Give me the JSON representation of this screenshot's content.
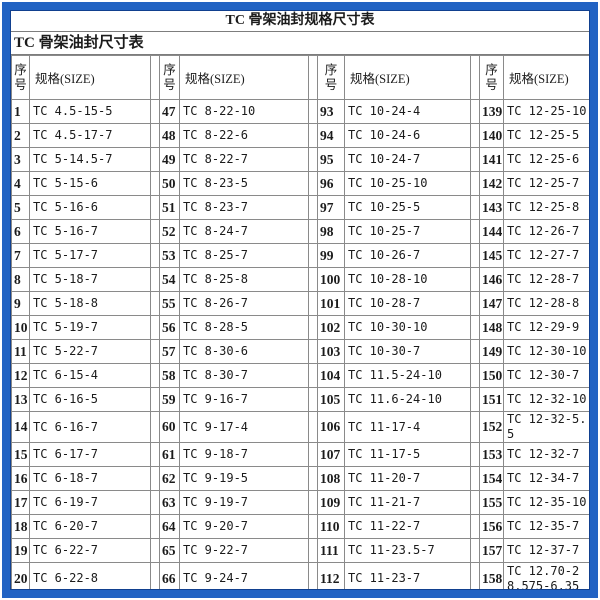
{
  "title": "TC 骨架油封规格尺寸表",
  "subtitle": "TC 骨架油封尺寸表",
  "table": {
    "index_header": "序号",
    "size_header": "规格(SIZE)",
    "groups": [
      {
        "rows": [
          {
            "no": "1",
            "size": "TC 4.5-15-5"
          },
          {
            "no": "2",
            "size": "TC 4.5-17-7"
          },
          {
            "no": "3",
            "size": "TC 5-14.5-7"
          },
          {
            "no": "4",
            "size": "TC 5-15-6"
          },
          {
            "no": "5",
            "size": "TC 5-16-6"
          },
          {
            "no": "6",
            "size": "TC 5-16-7"
          },
          {
            "no": "7",
            "size": "TC 5-17-7"
          },
          {
            "no": "8",
            "size": "TC 5-18-7"
          },
          {
            "no": "9",
            "size": "TC 5-18-8"
          },
          {
            "no": "10",
            "size": "TC 5-19-7"
          },
          {
            "no": "11",
            "size": "TC 5-22-7"
          },
          {
            "no": "12",
            "size": "TC 6-15-4"
          },
          {
            "no": "13",
            "size": "TC 6-16-5"
          },
          {
            "no": "14",
            "size": "TC 6-16-7"
          },
          {
            "no": "15",
            "size": "TC 6-17-7"
          },
          {
            "no": "16",
            "size": "TC 6-18-7"
          },
          {
            "no": "17",
            "size": "TC 6-19-7"
          },
          {
            "no": "18",
            "size": "TC 6-20-7"
          },
          {
            "no": "19",
            "size": "TC 6-22-7"
          },
          {
            "no": "20",
            "size": "TC 6-22-8"
          }
        ]
      },
      {
        "rows": [
          {
            "no": "47",
            "size": "TC 8-22-10"
          },
          {
            "no": "48",
            "size": "TC 8-22-6"
          },
          {
            "no": "49",
            "size": "TC 8-22-7"
          },
          {
            "no": "50",
            "size": "TC 8-23-5"
          },
          {
            "no": "51",
            "size": "TC 8-23-7"
          },
          {
            "no": "52",
            "size": "TC 8-24-7"
          },
          {
            "no": "53",
            "size": "TC 8-25-7"
          },
          {
            "no": "54",
            "size": "TC 8-25-8"
          },
          {
            "no": "55",
            "size": "TC 8-26-7"
          },
          {
            "no": "56",
            "size": "TC 8-28-5"
          },
          {
            "no": "57",
            "size": "TC 8-30-6"
          },
          {
            "no": "58",
            "size": "TC 8-30-7"
          },
          {
            "no": "59",
            "size": "TC 9-16-7"
          },
          {
            "no": "60",
            "size": "TC 9-17-4"
          },
          {
            "no": "61",
            "size": "TC 9-18-7"
          },
          {
            "no": "62",
            "size": "TC 9-19-5"
          },
          {
            "no": "63",
            "size": "TC 9-19-7"
          },
          {
            "no": "64",
            "size": "TC 9-20-7"
          },
          {
            "no": "65",
            "size": "TC 9-22-7"
          },
          {
            "no": "66",
            "size": "TC 9-24-7"
          }
        ]
      },
      {
        "rows": [
          {
            "no": "93",
            "size": "TC 10-24-4"
          },
          {
            "no": "94",
            "size": "TC 10-24-6"
          },
          {
            "no": "95",
            "size": "TC 10-24-7"
          },
          {
            "no": "96",
            "size": "TC 10-25-10"
          },
          {
            "no": "97",
            "size": "TC 10-25-5"
          },
          {
            "no": "98",
            "size": "TC 10-25-7"
          },
          {
            "no": "99",
            "size": "TC 10-26-7"
          },
          {
            "no": "100",
            "size": "TC 10-28-10"
          },
          {
            "no": "101",
            "size": "TC 10-28-7"
          },
          {
            "no": "102",
            "size": "TC 10-30-10"
          },
          {
            "no": "103",
            "size": "TC 10-30-7"
          },
          {
            "no": "104",
            "size": "TC 11.5-24-10"
          },
          {
            "no": "105",
            "size": "TC 11.6-24-10"
          },
          {
            "no": "106",
            "size": "TC 11-17-4"
          },
          {
            "no": "107",
            "size": "TC 11-17-5"
          },
          {
            "no": "108",
            "size": "TC 11-20-7"
          },
          {
            "no": "109",
            "size": "TC 11-21-7"
          },
          {
            "no": "110",
            "size": "TC 11-22-7"
          },
          {
            "no": "111",
            "size": "TC 11-23.5-7"
          },
          {
            "no": "112",
            "size": "TC 11-23-7"
          }
        ]
      },
      {
        "rows": [
          {
            "no": "139",
            "size": "TC 12-25-10"
          },
          {
            "no": "140",
            "size": "TC 12-25-5"
          },
          {
            "no": "141",
            "size": "TC 12-25-6"
          },
          {
            "no": "142",
            "size": "TC 12-25-7"
          },
          {
            "no": "143",
            "size": "TC 12-25-8"
          },
          {
            "no": "144",
            "size": "TC 12-26-7"
          },
          {
            "no": "145",
            "size": "TC 12-27-7"
          },
          {
            "no": "146",
            "size": "TC 12-28-7"
          },
          {
            "no": "147",
            "size": "TC 12-28-8"
          },
          {
            "no": "148",
            "size": "TC 12-29-9"
          },
          {
            "no": "149",
            "size": "TC 12-30-10"
          },
          {
            "no": "150",
            "size": "TC 12-30-7"
          },
          {
            "no": "151",
            "size": "TC 12-32-10"
          },
          {
            "no": "152",
            "size": "TC 12-32-5.5"
          },
          {
            "no": "153",
            "size": "TC 12-32-7"
          },
          {
            "no": "154",
            "size": "TC 12-34-7"
          },
          {
            "no": "155",
            "size": "TC 12-35-10"
          },
          {
            "no": "156",
            "size": "TC 12-35-7"
          },
          {
            "no": "157",
            "size": "TC 12-37-7"
          },
          {
            "no": "158",
            "size": "TC 12.70-28.575-6.35"
          }
        ]
      }
    ]
  },
  "colors": {
    "frame_blue": "#2263c3",
    "frame_inner_navy": "#11408f",
    "gridline_gray": "#8a8a8a",
    "text": "#1b1b1b"
  }
}
